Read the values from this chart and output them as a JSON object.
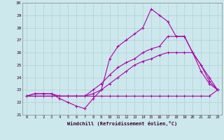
{
  "xlabel": "Windchill (Refroidissement éolien,°C)",
  "bg_color": "#cce8ec",
  "grid_color": "#aacccc",
  "line_color": "#aa00aa",
  "xlim": [
    -0.5,
    23.5
  ],
  "ylim": [
    21,
    30
  ],
  "xticks": [
    0,
    1,
    2,
    3,
    4,
    5,
    6,
    7,
    8,
    9,
    10,
    11,
    12,
    13,
    14,
    15,
    16,
    17,
    18,
    19,
    20,
    21,
    22,
    23
  ],
  "yticks": [
    21,
    22,
    23,
    24,
    25,
    26,
    27,
    28,
    29,
    30
  ],
  "series": [
    {
      "x": [
        0,
        1,
        2,
        3,
        4,
        5,
        6,
        7,
        8,
        9,
        10,
        11,
        12,
        13,
        14,
        15,
        16,
        17,
        18,
        19,
        20,
        21,
        22,
        23
      ],
      "y": [
        22.5,
        22.7,
        22.7,
        22.7,
        22.5,
        22.5,
        22.5,
        22.5,
        22.5,
        22.5,
        22.5,
        22.5,
        22.5,
        22.5,
        22.5,
        22.5,
        22.5,
        22.5,
        22.5,
        22.5,
        22.5,
        22.5,
        22.5,
        23.0
      ]
    },
    {
      "x": [
        0,
        1,
        2,
        3,
        4,
        5,
        6,
        7,
        8,
        9,
        10,
        11,
        12,
        13,
        14,
        15,
        16,
        17,
        18,
        19,
        20,
        21,
        22,
        23
      ],
      "y": [
        22.5,
        22.5,
        22.5,
        22.5,
        22.5,
        22.5,
        22.5,
        22.5,
        22.7,
        23.0,
        23.5,
        24.0,
        24.5,
        25.0,
        25.3,
        25.5,
        25.8,
        26.0,
        26.0,
        26.0,
        26.0,
        25.0,
        24.0,
        23.0
      ]
    },
    {
      "x": [
        0,
        1,
        2,
        3,
        4,
        5,
        6,
        7,
        8,
        9,
        10,
        11,
        12,
        13,
        14,
        15,
        16,
        17,
        18,
        19,
        20,
        21,
        22,
        23
      ],
      "y": [
        22.5,
        22.5,
        22.5,
        22.5,
        22.5,
        22.5,
        22.5,
        22.5,
        23.0,
        23.5,
        24.2,
        24.8,
        25.2,
        25.5,
        26.0,
        26.3,
        26.5,
        27.3,
        27.3,
        27.3,
        26.0,
        25.0,
        23.7,
        23.0
      ]
    },
    {
      "x": [
        0,
        1,
        2,
        3,
        4,
        5,
        6,
        7,
        8,
        9,
        10,
        11,
        12,
        13,
        14,
        15,
        16,
        17,
        18,
        19,
        20,
        21,
        22,
        23
      ],
      "y": [
        22.5,
        22.7,
        22.7,
        22.7,
        22.3,
        22.0,
        21.7,
        21.5,
        22.3,
        23.0,
        25.5,
        26.5,
        27.0,
        27.5,
        28.0,
        29.5,
        29.0,
        28.5,
        27.3,
        27.3,
        26.0,
        24.5,
        23.5,
        23.0
      ]
    }
  ]
}
